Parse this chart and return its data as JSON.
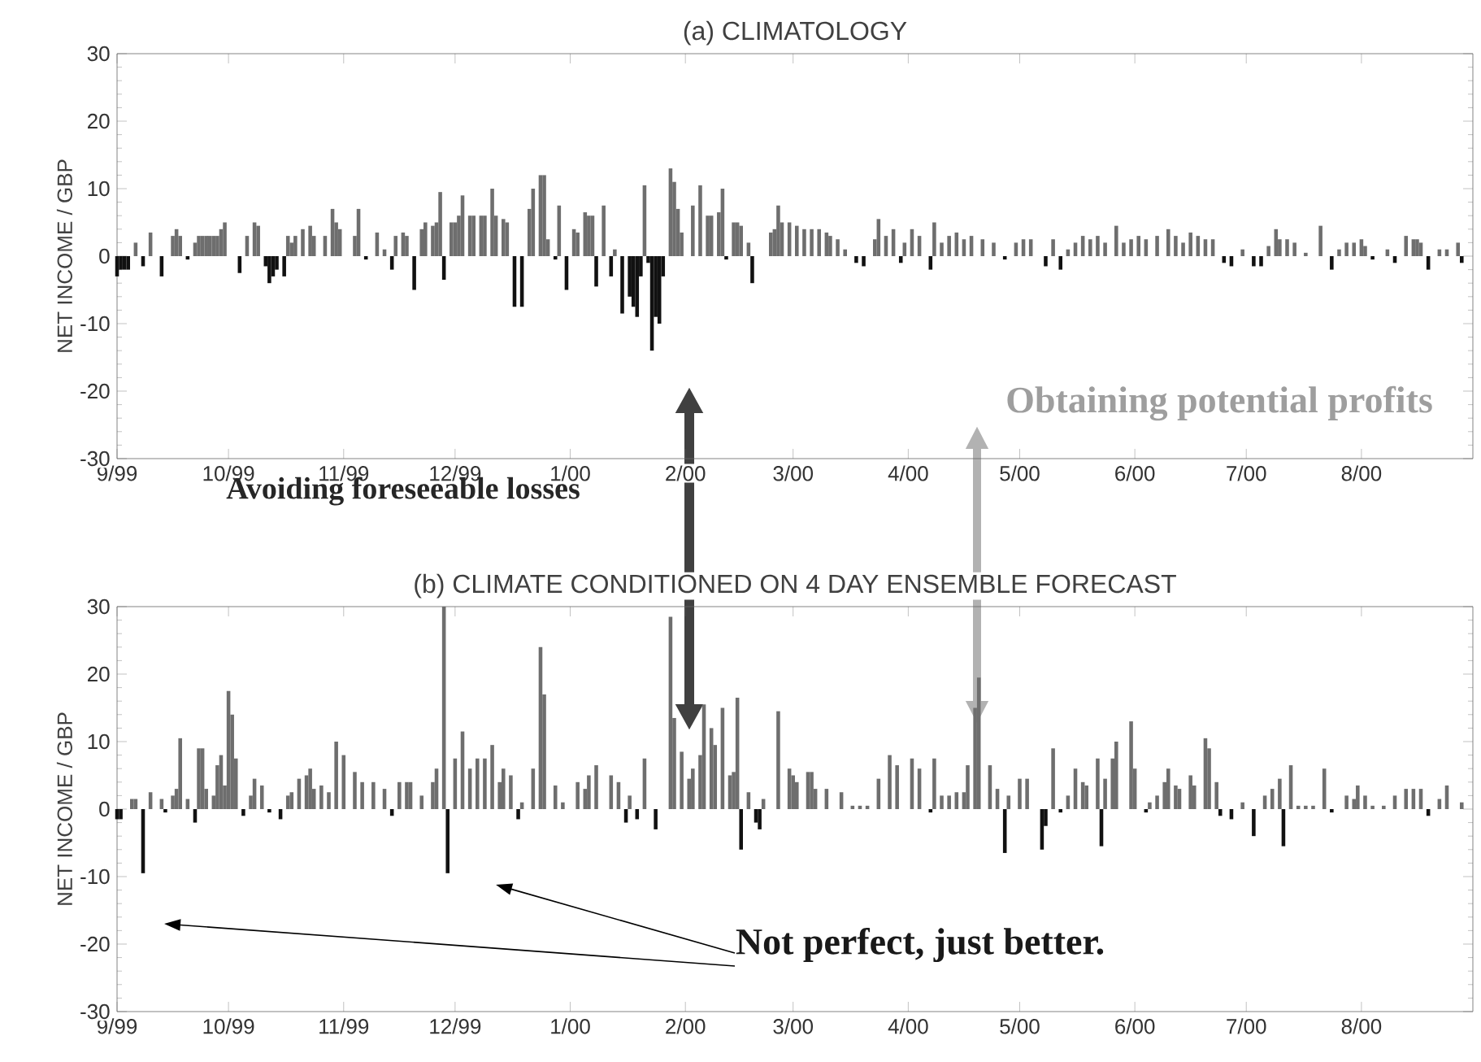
{
  "chart_data": [
    {
      "type": "bar",
      "title": "(a) CLIMATOLOGY",
      "ylabel": "NET INCOME / GBP",
      "annotations": [
        "Obtaining potential profits",
        "Avoiding foreseeable losses"
      ],
      "xlim": [
        "1999-09-01",
        "2000-08-31"
      ],
      "ylim": [
        -30,
        30
      ],
      "xticks": [
        {
          "value": "1999-09-01",
          "label": "9/99"
        },
        {
          "value": "1999-10-01",
          "label": "10/99"
        },
        {
          "value": "1999-11-01",
          "label": "11/99"
        },
        {
          "value": "1999-12-01",
          "label": "12/99"
        },
        {
          "value": "2000-01-01",
          "label": "1/00"
        },
        {
          "value": "2000-02-01",
          "label": "2/00"
        },
        {
          "value": "2000-03-01",
          "label": "3/00"
        },
        {
          "value": "2000-04-01",
          "label": "4/00"
        },
        {
          "value": "2000-05-01",
          "label": "5/00"
        },
        {
          "value": "2000-06-01",
          "label": "6/00"
        },
        {
          "value": "2000-07-01",
          "label": "7/00"
        },
        {
          "value": "2000-08-01",
          "label": "8/00"
        }
      ],
      "yticks": [
        -30,
        -20,
        -10,
        0,
        10,
        20,
        30
      ],
      "series": [
        {
          "color": "#6e6e6e",
          "x": [
            "1999-09-06",
            "1999-09-10",
            "1999-09-16",
            "1999-09-17",
            "1999-09-18",
            "1999-09-22",
            "1999-09-23",
            "1999-09-24",
            "1999-09-25",
            "1999-09-26",
            "1999-09-27",
            "1999-09-28",
            "1999-09-29",
            "1999-09-30",
            "1999-10-06",
            "1999-10-08",
            "1999-10-09",
            "1999-10-17",
            "1999-10-18",
            "1999-10-19",
            "1999-10-21",
            "1999-10-23",
            "1999-10-24",
            "1999-10-27",
            "1999-10-29",
            "1999-10-30",
            "1999-10-31",
            "1999-11-04",
            "1999-11-05",
            "1999-11-10",
            "1999-11-12",
            "1999-11-15",
            "1999-11-17",
            "1999-11-18",
            "1999-11-22",
            "1999-11-23",
            "1999-11-25",
            "1999-11-26",
            "1999-11-27",
            "1999-11-30",
            "1999-12-01",
            "1999-12-02",
            "1999-12-03",
            "1999-12-05",
            "1999-12-06",
            "1999-12-08",
            "1999-12-09",
            "1999-12-11",
            "1999-12-12",
            "1999-12-14",
            "1999-12-15",
            "1999-12-21",
            "1999-12-22",
            "1999-12-24",
            "1999-12-25",
            "1999-12-26",
            "1999-12-29",
            "2000-01-02",
            "2000-01-03",
            "2000-01-05",
            "2000-01-06",
            "2000-01-07",
            "2000-01-10",
            "2000-01-13",
            "2000-01-21",
            "2000-01-28",
            "2000-01-29",
            "2000-01-30",
            "2000-01-31",
            "2000-02-03",
            "2000-02-05",
            "2000-02-07",
            "2000-02-08",
            "2000-02-10",
            "2000-02-11",
            "2000-02-14",
            "2000-02-15",
            "2000-02-16",
            "2000-02-18",
            "2000-02-24",
            "2000-02-25",
            "2000-02-26",
            "2000-02-27",
            "2000-02-29",
            "2000-03-02",
            "2000-03-04",
            "2000-03-06",
            "2000-03-08",
            "2000-03-10",
            "2000-03-11",
            "2000-03-13",
            "2000-03-15",
            "2000-03-23",
            "2000-03-24",
            "2000-03-26",
            "2000-03-28",
            "2000-03-31",
            "2000-04-02",
            "2000-04-04",
            "2000-04-08",
            "2000-04-10",
            "2000-04-12",
            "2000-04-14",
            "2000-04-16",
            "2000-04-18",
            "2000-04-21",
            "2000-04-24",
            "2000-04-30",
            "2000-05-02",
            "2000-05-04",
            "2000-05-10",
            "2000-05-14",
            "2000-05-16",
            "2000-05-18",
            "2000-05-20",
            "2000-05-22",
            "2000-05-24",
            "2000-05-27",
            "2000-05-29",
            "2000-05-31",
            "2000-06-02",
            "2000-06-04",
            "2000-06-07",
            "2000-06-10",
            "2000-06-12",
            "2000-06-14",
            "2000-06-16",
            "2000-06-18",
            "2000-06-20",
            "2000-06-22",
            "2000-06-30",
            "2000-07-07",
            "2000-07-09",
            "2000-07-10",
            "2000-07-12",
            "2000-07-14",
            "2000-07-17",
            "2000-07-21",
            "2000-07-26",
            "2000-07-28",
            "2000-07-30",
            "2000-08-01",
            "2000-08-02",
            "2000-08-08",
            "2000-08-13",
            "2000-08-15",
            "2000-08-16",
            "2000-08-17",
            "2000-08-22",
            "2000-08-24",
            "2000-08-27"
          ],
          "values": [
            2,
            3.5,
            3,
            4,
            3,
            2,
            3,
            3,
            3,
            3,
            3,
            3,
            4,
            5,
            3,
            5,
            4.5,
            3,
            2,
            3,
            4,
            4.5,
            3,
            3,
            7,
            5,
            4,
            3,
            7,
            3.5,
            1,
            3,
            3.5,
            3,
            4,
            5,
            4.5,
            5,
            9.5,
            5,
            5,
            6,
            9,
            6,
            6,
            6,
            6,
            10,
            6,
            5.5,
            5,
            7,
            10,
            12,
            12,
            2.5,
            7.5,
            4,
            3.5,
            6.5,
            6,
            6,
            7.5,
            1,
            10.5,
            13,
            11,
            7,
            3.5,
            7.5,
            10.5,
            6,
            6,
            6.5,
            10,
            5,
            5,
            4.5,
            2,
            3.5,
            4,
            7.5,
            5,
            5,
            4.5,
            4,
            4,
            4,
            3.5,
            3,
            2.5,
            1,
            2.5,
            5.5,
            3,
            4,
            2,
            4,
            3,
            5,
            2,
            3,
            3.5,
            2.5,
            3,
            2.5,
            2,
            2,
            2.5,
            2.5,
            2.5,
            1,
            2,
            3,
            2.5,
            3,
            2,
            4.5,
            2,
            2.5,
            3,
            2.5,
            3,
            4,
            3,
            2,
            3.5,
            3,
            2.5,
            2.5,
            1,
            1.5,
            4,
            2.5,
            2.5,
            2,
            0.5,
            4.5,
            1,
            2,
            2,
            2.5,
            1.5,
            1,
            3,
            2.5,
            2.5,
            2,
            1,
            1,
            2
          ]
        },
        {
          "color": "#111111",
          "x": [
            "1999-09-01",
            "1999-09-02",
            "1999-09-03",
            "1999-09-04",
            "1999-09-08",
            "1999-09-13",
            "1999-09-20",
            "1999-10-04",
            "1999-10-11",
            "1999-10-12",
            "1999-10-13",
            "1999-10-14",
            "1999-10-16",
            "1999-11-07",
            "1999-11-14",
            "1999-11-20",
            "1999-11-28",
            "1999-12-17",
            "1999-12-19",
            "1999-12-28",
            "1999-12-31",
            "2000-01-08",
            "2000-01-12",
            "2000-01-15",
            "2000-01-17",
            "2000-01-18",
            "2000-01-19",
            "2000-01-20",
            "2000-01-22",
            "2000-01-23",
            "2000-01-24",
            "2000-01-25",
            "2000-01-26",
            "2000-02-12",
            "2000-02-19",
            "2000-03-18",
            "2000-03-20",
            "2000-03-30",
            "2000-04-07",
            "2000-04-27",
            "2000-05-08",
            "2000-05-12",
            "2000-06-25",
            "2000-06-27",
            "2000-07-03",
            "2000-07-05",
            "2000-07-24",
            "2000-08-04",
            "2000-08-10",
            "2000-08-19",
            "2000-08-28"
          ],
          "values": [
            -3,
            -2,
            -2,
            -2,
            -1.5,
            -3,
            -0.5,
            -2.5,
            -1.5,
            -4,
            -3,
            -2,
            -3,
            -0.5,
            -2,
            -5,
            -3.5,
            -7.5,
            -7.5,
            -0.5,
            -5,
            -4.5,
            -3,
            -8.5,
            -6,
            -7.5,
            -9,
            -3,
            -1,
            -14,
            -9,
            -10,
            -3,
            -0.5,
            -4,
            -1,
            -1.5,
            -1,
            -2,
            -0.5,
            -1.5,
            -2,
            -1,
            -1.5,
            -1.5,
            -1.5,
            -2,
            -0.5,
            -1,
            -2,
            -1
          ]
        }
      ]
    },
    {
      "type": "bar",
      "title": "(b) CLIMATE CONDITIONED ON 4 DAY ENSEMBLE FORECAST",
      "ylabel": "NET INCOME / GBP",
      "annotations": [
        "Not perfect, just better."
      ],
      "xlim": [
        "1999-09-01",
        "2000-08-31"
      ],
      "ylim": [
        -30,
        30
      ],
      "xticks": [
        {
          "value": "1999-09-01",
          "label": "9/99"
        },
        {
          "value": "1999-10-01",
          "label": "10/99"
        },
        {
          "value": "1999-11-01",
          "label": "11/99"
        },
        {
          "value": "1999-12-01",
          "label": "12/99"
        },
        {
          "value": "2000-01-01",
          "label": "1/00"
        },
        {
          "value": "2000-02-01",
          "label": "2/00"
        },
        {
          "value": "2000-03-01",
          "label": "3/00"
        },
        {
          "value": "2000-04-01",
          "label": "4/00"
        },
        {
          "value": "2000-05-01",
          "label": "5/00"
        },
        {
          "value": "2000-06-01",
          "label": "6/00"
        },
        {
          "value": "2000-07-01",
          "label": "7/00"
        },
        {
          "value": "2000-08-01",
          "label": "8/00"
        }
      ],
      "yticks": [
        -30,
        -20,
        -10,
        0,
        10,
        20,
        30
      ],
      "series": [
        {
          "color": "#6e6e6e",
          "x": [
            "1999-09-05",
            "1999-09-06",
            "1999-09-10",
            "1999-09-13",
            "1999-09-16",
            "1999-09-17",
            "1999-09-18",
            "1999-09-20",
            "1999-09-23",
            "1999-09-24",
            "1999-09-25",
            "1999-09-27",
            "1999-09-28",
            "1999-09-29",
            "1999-09-30",
            "1999-10-01",
            "1999-10-02",
            "1999-10-03",
            "1999-10-07",
            "1999-10-08",
            "1999-10-10",
            "1999-10-17",
            "1999-10-18",
            "1999-10-20",
            "1999-10-22",
            "1999-10-23",
            "1999-10-24",
            "1999-10-26",
            "1999-10-28",
            "1999-10-30",
            "1999-11-01",
            "1999-11-04",
            "1999-11-06",
            "1999-11-09",
            "1999-11-12",
            "1999-11-16",
            "1999-11-18",
            "1999-11-19",
            "1999-11-22",
            "1999-11-25",
            "1999-11-26",
            "1999-11-28",
            "1999-12-01",
            "1999-12-03",
            "1999-12-05",
            "1999-12-07",
            "1999-12-09",
            "1999-12-11",
            "1999-12-13",
            "1999-12-14",
            "1999-12-16",
            "1999-12-19",
            "1999-12-22",
            "1999-12-24",
            "1999-12-25",
            "1999-12-28",
            "1999-12-30",
            "2000-01-03",
            "2000-01-05",
            "2000-01-06",
            "2000-01-08",
            "2000-01-12",
            "2000-01-14",
            "2000-01-17",
            "2000-01-21",
            "2000-01-28",
            "2000-01-29",
            "2000-01-31",
            "2000-02-02",
            "2000-02-03",
            "2000-02-05",
            "2000-02-06",
            "2000-02-08",
            "2000-02-09",
            "2000-02-11",
            "2000-02-13",
            "2000-02-14",
            "2000-02-15",
            "2000-02-18",
            "2000-02-22",
            "2000-02-26",
            "2000-02-29",
            "2000-03-01",
            "2000-03-02",
            "2000-03-05",
            "2000-03-06",
            "2000-03-07",
            "2000-03-10",
            "2000-03-14",
            "2000-03-17",
            "2000-03-19",
            "2000-03-21",
            "2000-03-24",
            "2000-03-27",
            "2000-03-29",
            "2000-04-02",
            "2000-04-04",
            "2000-04-08",
            "2000-04-10",
            "2000-04-12",
            "2000-04-14",
            "2000-04-16",
            "2000-04-17",
            "2000-04-19",
            "2000-04-20",
            "2000-04-23",
            "2000-04-25",
            "2000-04-28",
            "2000-05-01",
            "2000-05-03",
            "2000-05-10",
            "2000-05-14",
            "2000-05-16",
            "2000-05-18",
            "2000-05-19",
            "2000-05-22",
            "2000-05-24",
            "2000-05-26",
            "2000-05-27",
            "2000-05-31",
            "2000-06-01",
            "2000-06-05",
            "2000-06-07",
            "2000-06-09",
            "2000-06-10",
            "2000-06-12",
            "2000-06-13",
            "2000-06-16",
            "2000-06-17",
            "2000-06-20",
            "2000-06-21",
            "2000-06-23",
            "2000-06-30",
            "2000-07-06",
            "2000-07-08",
            "2000-07-10",
            "2000-07-13",
            "2000-07-15",
            "2000-07-17",
            "2000-07-19",
            "2000-07-22",
            "2000-07-28",
            "2000-07-30",
            "2000-07-31",
            "2000-08-02",
            "2000-08-04",
            "2000-08-07",
            "2000-08-10",
            "2000-08-13",
            "2000-08-15",
            "2000-08-17",
            "2000-08-22",
            "2000-08-24",
            "2000-08-28"
          ],
          "values": [
            1.5,
            1.5,
            2.5,
            1.5,
            2,
            3,
            10.5,
            1.5,
            9,
            9,
            3,
            2,
            6.5,
            8,
            3.5,
            17.5,
            14,
            7.5,
            2,
            4.5,
            3.5,
            2,
            2.5,
            4.5,
            5,
            6,
            3,
            3.5,
            2.5,
            10,
            8,
            5.5,
            4,
            4,
            3,
            4,
            4,
            4,
            2,
            4,
            6,
            30,
            7.5,
            11.5,
            6,
            7.5,
            7.5,
            9.5,
            4,
            6,
            5,
            1,
            6,
            24,
            17,
            3.5,
            1,
            4,
            3,
            5,
            6.5,
            5,
            4,
            2,
            7.5,
            28.5,
            13.5,
            8.5,
            4.5,
            6,
            8,
            15.5,
            12,
            9.5,
            15,
            5,
            5.5,
            16.5,
            2.5,
            1.5,
            14.5,
            6,
            5,
            4,
            5.5,
            5.5,
            3,
            3,
            2.5,
            0.5,
            0.5,
            0.5,
            4.5,
            8,
            6.5,
            7.5,
            6,
            7.5,
            2,
            2,
            2.5,
            2.5,
            6.5,
            15,
            19.5,
            6.5,
            3,
            2,
            4.5,
            4.5,
            9,
            2,
            6,
            4,
            3.5,
            7.5,
            4.5,
            7.5,
            10,
            13,
            6,
            1,
            2,
            4,
            6,
            3.5,
            3,
            5,
            3.5,
            10.5,
            9,
            4,
            1,
            2,
            3,
            4.5,
            6.5,
            0.5,
            0.5,
            0.5,
            6,
            2,
            1.5,
            3.5,
            2,
            0.5,
            0.5,
            2,
            3,
            3,
            3,
            1.5,
            3.5,
            1
          ]
        },
        {
          "color": "#111111",
          "x": [
            "1999-09-01",
            "1999-09-02",
            "1999-09-08",
            "1999-09-14",
            "1999-09-22",
            "1999-10-05",
            "1999-10-12",
            "1999-10-15",
            "1999-11-14",
            "1999-11-29",
            "1999-12-18",
            "2000-01-16",
            "2000-01-19",
            "2000-01-24",
            "2000-02-16",
            "2000-02-20",
            "2000-02-21",
            "2000-04-07",
            "2000-04-27",
            "2000-05-07",
            "2000-05-08",
            "2000-05-12",
            "2000-05-23",
            "2000-06-04",
            "2000-06-24",
            "2000-06-27",
            "2000-07-03",
            "2000-07-11",
            "2000-07-24",
            "2000-08-19"
          ],
          "values": [
            -1.5,
            -1.5,
            -9.5,
            -0.5,
            -2,
            -1,
            -0.5,
            -1.5,
            -1,
            -9.5,
            -1.5,
            -2,
            -1.5,
            -3,
            -6,
            -2,
            -3,
            -0.5,
            -6.5,
            -6,
            -2.5,
            -0.5,
            -5.5,
            -0.5,
            -1,
            -1.5,
            -4,
            -5.5,
            -0.5,
            -1
          ]
        }
      ]
    }
  ]
}
